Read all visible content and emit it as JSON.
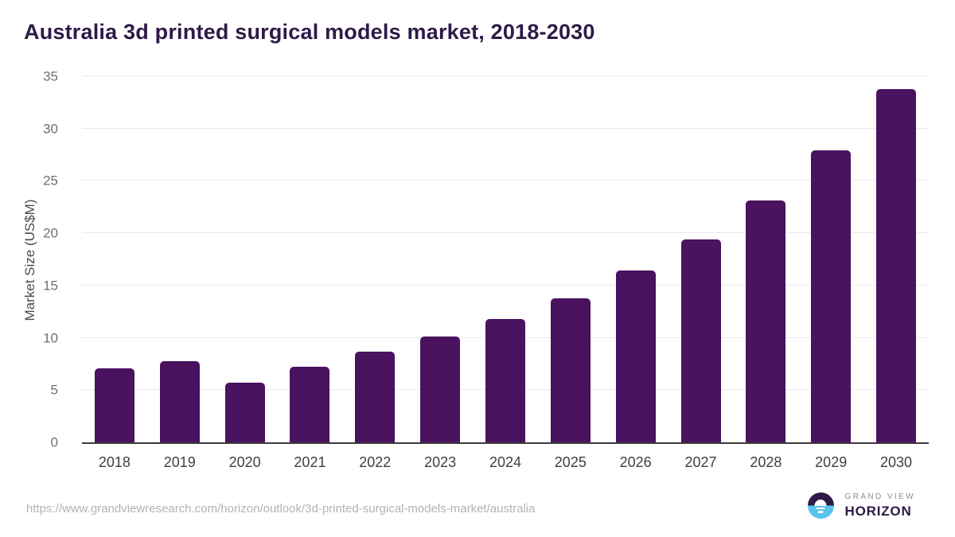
{
  "page": {
    "title": "Australia 3d printed surgical models market, 2018-2030"
  },
  "chart_data": {
    "type": "bar",
    "title": "Australia 3d printed surgical models market, 2018-2030",
    "categories": [
      "2018",
      "2019",
      "2020",
      "2021",
      "2022",
      "2023",
      "2024",
      "2025",
      "2026",
      "2027",
      "2028",
      "2029",
      "2030"
    ],
    "values": [
      7.1,
      7.8,
      5.7,
      7.2,
      8.7,
      10.1,
      11.8,
      13.8,
      16.4,
      19.4,
      23.1,
      27.9,
      33.8
    ],
    "xlabel": "",
    "ylabel": "Market Size (US$M)",
    "ylim": [
      0,
      35
    ],
    "yticks": [
      0,
      5,
      10,
      15,
      20,
      25,
      30,
      35
    ],
    "grid": true,
    "legend_position": "none",
    "bar_color": "#4A125F"
  },
  "footer": {
    "source_url": "https://www.grandviewresearch.com/horizon/outlook/3d-printed-surgical-models-market/australia",
    "logo": {
      "top_line": "GRAND VIEW",
      "bottom_line": "HORIZON"
    }
  },
  "colors": {
    "background": "#FFFFFF",
    "title": "#2E1A47",
    "bar": "#4A125F",
    "axis_line": "#3B3B3B",
    "gridline": "#E9E9EC",
    "y_tick_text": "#6F6F6F",
    "x_tick_text": "#3F3F3F",
    "url_text": "#B3B3B3",
    "logo_blue": "#59C3EF",
    "logo_purple": "#2E1A47",
    "logo_gray": "#8C8C8C"
  }
}
